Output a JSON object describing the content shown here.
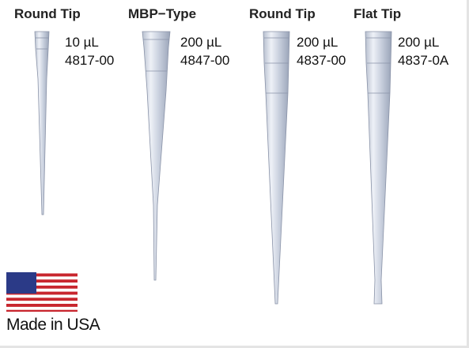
{
  "products": [
    {
      "type": "Round Tip",
      "volume": "10 µL",
      "code": "4817-00"
    },
    {
      "type": "MBP−Type",
      "volume": "200 µL",
      "code": "4847-00"
    },
    {
      "type": "Round Tip",
      "volume": "200 µL",
      "code": "4837-00"
    },
    {
      "type": "Flat Tip",
      "volume": "200 µL",
      "code": "4837-0A"
    }
  ],
  "origin": "Made in USA"
}
